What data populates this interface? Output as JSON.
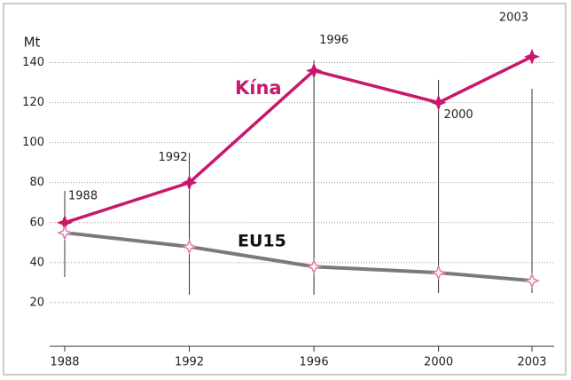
{
  "chart_data": {
    "type": "line",
    "y_axis_label": "Mt",
    "x": [
      1988,
      1992,
      1996,
      2000,
      2003
    ],
    "series": [
      {
        "name": "Kína",
        "color": "#c8186e",
        "values": [
          60,
          80,
          136,
          120,
          143
        ]
      },
      {
        "name": "EU15",
        "color": "#7a7a7a",
        "values": [
          55,
          48,
          38,
          35,
          31
        ]
      }
    ],
    "annotations": [
      "1988",
      "1992",
      "1996",
      "2000",
      "2003"
    ],
    "xlim": [
      1988,
      2003
    ],
    "xticks": [
      1988,
      1992,
      1996,
      2000,
      2003
    ],
    "ylim": [
      0,
      150
    ],
    "yticks": [
      20,
      40,
      60,
      80,
      100,
      120,
      140
    ],
    "grid": true
  }
}
